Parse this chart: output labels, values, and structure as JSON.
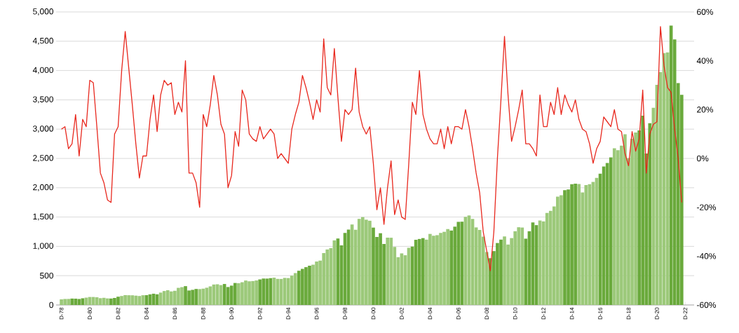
{
  "chart_data": {
    "type": "bar",
    "categories": [
      "D-78",
      null,
      null,
      null,
      null,
      null,
      null,
      null,
      "D-80",
      null,
      null,
      null,
      null,
      null,
      null,
      null,
      "D-82",
      null,
      null,
      null,
      null,
      null,
      null,
      null,
      "D-84",
      null,
      null,
      null,
      null,
      null,
      null,
      null,
      "D-86",
      null,
      null,
      null,
      null,
      null,
      null,
      null,
      "D-88",
      null,
      null,
      null,
      null,
      null,
      null,
      null,
      "D-90",
      null,
      null,
      null,
      null,
      null,
      null,
      null,
      "D-92",
      null,
      null,
      null,
      null,
      null,
      null,
      null,
      "D-94",
      null,
      null,
      null,
      null,
      null,
      null,
      null,
      "D-96",
      null,
      null,
      null,
      null,
      null,
      null,
      null,
      "D-98",
      null,
      null,
      null,
      null,
      null,
      null,
      null,
      "D-00",
      null,
      null,
      null,
      null,
      null,
      null,
      null,
      "D-02",
      null,
      null,
      null,
      null,
      null,
      null,
      null,
      "D-04",
      null,
      null,
      null,
      null,
      null,
      null,
      null,
      "D-06",
      null,
      null,
      null,
      null,
      null,
      null,
      null,
      "D-08",
      null,
      null,
      null,
      null,
      null,
      null,
      null,
      "D-10",
      null,
      null,
      null,
      null,
      null,
      null,
      null,
      "D-12",
      null,
      null,
      null,
      null,
      null,
      null,
      null,
      "D-14",
      null,
      null,
      null,
      null,
      null,
      null,
      null,
      "D-16",
      null,
      null,
      null,
      null,
      null,
      null,
      null,
      "D-18",
      null,
      null,
      null,
      null,
      null,
      null,
      null,
      "D-20",
      null,
      null,
      null,
      null,
      null,
      null,
      null,
      "D-22"
    ],
    "series": [
      {
        "values": [
          96,
          102,
          103,
          109,
          108,
          102,
          114,
          125,
          136,
          136,
          131,
          116,
          122,
          112,
          110,
          120,
          141,
          153,
          168,
          166,
          165,
          159,
          153,
          166,
          167,
          181,
          192,
          182,
          211,
          238,
          251,
          231,
          242,
          292,
          304,
          321,
          247,
          258,
          273,
          271,
          278,
          294,
          317,
          349,
          353,
          339,
          358,
          306,
          330,
          375,
          371,
          388,
          417,
          404,
          408,
          418,
          436,
          451,
          450,
          458,
          466,
          445,
          444,
          462,
          459,
          500,
          544,
          584,
          616,
          645,
          670,
          687,
          741,
          757,
          885,
          947,
          970,
          1102,
          1134,
          1017,
          1229,
          1286,
          1373,
          1283,
          1469,
          1499,
          1455,
          1437,
          1320,
          1160,
          1224,
          1041,
          1148,
          1147,
          990,
          815,
          880,
          848,
          975,
          996,
          1112,
          1126,
          1141,
          1115,
          1212,
          1181,
          1191,
          1229,
          1248,
          1295,
          1270,
          1336,
          1418,
          1421,
          1503,
          1527,
          1468,
          1323,
          1280,
          1166,
          903,
          798,
          919,
          1057,
          1115,
          1169,
          1031,
          1141,
          1258,
          1326,
          1321,
          1131,
          1258,
          1408,
          1362,
          1441,
          1426,
          1569,
          1606,
          1682,
          1848,
          1872,
          1960,
          1972,
          2059,
          2068,
          2063,
          1920,
          2044,
          2060,
          2099,
          2168,
          2239,
          2363,
          2423,
          2519,
          2674,
          2641,
          2718,
          2914,
          2507,
          2834,
          2942,
          2977,
          3231,
          2585,
          3100,
          3363,
          3756,
          3973,
          4298,
          4308,
          4766,
          4530,
          3785,
          3586,
          null
        ],
        "colors": [
          "#9cc97a",
          "#9cc97a",
          "#9cc97a",
          "#6aaa3c",
          "#6aaa3c",
          "#6aaa3c",
          "#6aaa3c",
          "#9cc97a",
          "#9cc97a",
          "#9cc97a",
          "#9cc97a",
          "#9cc97a",
          "#9cc97a",
          "#9cc97a",
          "#6aaa3c",
          "#6aaa3c",
          "#6aaa3c",
          "#9cc97a",
          "#9cc97a",
          "#9cc97a",
          "#9cc97a",
          "#9cc97a",
          "#9cc97a",
          "#9cc97a",
          "#6aaa3c",
          "#6aaa3c",
          "#6aaa3c",
          "#6aaa3c",
          "#9cc97a",
          "#9cc97a",
          "#9cc97a",
          "#9cc97a",
          "#9cc97a",
          "#9cc97a",
          "#9cc97a",
          "#6aaa3c",
          "#6aaa3c",
          "#6aaa3c",
          "#6aaa3c",
          "#9cc97a",
          "#9cc97a",
          "#9cc97a",
          "#9cc97a",
          "#9cc97a",
          "#9cc97a",
          "#9cc97a",
          "#6aaa3c",
          "#6aaa3c",
          "#6aaa3c",
          "#6aaa3c",
          "#9cc97a",
          "#9cc97a",
          "#9cc97a",
          "#9cc97a",
          "#9cc97a",
          "#9cc97a",
          "#6aaa3c",
          "#6aaa3c",
          "#6aaa3c",
          "#6aaa3c",
          "#9cc97a",
          "#9cc97a",
          "#9cc97a",
          "#9cc97a",
          "#9cc97a",
          "#9cc97a",
          "#9cc97a",
          "#6aaa3c",
          "#6aaa3c",
          "#6aaa3c",
          "#6aaa3c",
          "#9cc97a",
          "#9cc97a",
          "#9cc97a",
          "#9cc97a",
          "#9cc97a",
          "#9cc97a",
          "#9cc97a",
          "#6aaa3c",
          "#6aaa3c",
          "#6aaa3c",
          "#6aaa3c",
          "#9cc97a",
          "#9cc97a",
          "#9cc97a",
          "#9cc97a",
          "#9cc97a",
          "#9cc97a",
          "#6aaa3c",
          "#6aaa3c",
          "#6aaa3c",
          "#6aaa3c",
          "#9cc97a",
          "#9cc97a",
          "#9cc97a",
          "#9cc97a",
          "#9cc97a",
          "#9cc97a",
          "#9cc97a",
          "#6aaa3c",
          "#6aaa3c",
          "#6aaa3c",
          "#6aaa3c",
          "#9cc97a",
          "#9cc97a",
          "#9cc97a",
          "#9cc97a",
          "#9cc97a",
          "#9cc97a",
          "#9cc97a",
          "#6aaa3c",
          "#6aaa3c",
          "#6aaa3c",
          "#6aaa3c",
          "#9cc97a",
          "#9cc97a",
          "#9cc97a",
          "#9cc97a",
          "#9cc97a",
          "#9cc97a",
          "#9cc97a",
          "#6aaa3c",
          "#6aaa3c",
          "#6aaa3c",
          "#6aaa3c",
          "#9cc97a",
          "#9cc97a",
          "#9cc97a",
          "#9cc97a",
          "#9cc97a",
          "#9cc97a",
          "#6aaa3c",
          "#6aaa3c",
          "#6aaa3c",
          "#6aaa3c",
          "#9cc97a",
          "#9cc97a",
          "#9cc97a",
          "#9cc97a",
          "#9cc97a",
          "#9cc97a",
          "#9cc97a",
          "#6aaa3c",
          "#6aaa3c",
          "#6aaa3c",
          "#6aaa3c",
          "#9cc97a",
          "#9cc97a",
          "#9cc97a",
          "#9cc97a",
          "#9cc97a",
          "#9cc97a",
          "#6aaa3c",
          "#6aaa3c",
          "#6aaa3c",
          "#6aaa3c",
          "#9cc97a",
          "#9cc97a",
          "#9cc97a",
          "#9cc97a",
          "#9cc97a",
          "#9cc97a",
          "#9cc97a",
          "#6aaa3c",
          "#6aaa3c",
          "#6aaa3c",
          "#6aaa3c",
          "#9cc97a",
          "#9cc97a",
          "#9cc97a",
          "#9cc97a",
          "#9cc97a",
          "#6aaa3c",
          "#6aaa3c",
          "#6aaa3c",
          "#6aaa3c",
          "#9cc97a"
        ]
      },
      {
        "type": "line",
        "axis": "y2",
        "color": "#e8281e",
        "values": [
          12,
          13,
          4,
          6,
          18,
          1,
          16,
          13,
          32,
          31,
          13,
          -6,
          -10,
          -17,
          -18,
          10,
          13,
          36,
          52,
          37,
          22,
          6,
          -8,
          1,
          1,
          16,
          26,
          11,
          26,
          32,
          30,
          31,
          18,
          23,
          19,
          40,
          -6,
          -6,
          -10,
          -20,
          18,
          13,
          22,
          34,
          26,
          14,
          10,
          -12,
          -7,
          11,
          5,
          28,
          24,
          10,
          8,
          7,
          13,
          8,
          10,
          12,
          10,
          0,
          2,
          0,
          -2,
          12,
          18,
          23,
          34,
          29,
          23,
          16,
          24,
          19,
          49,
          29,
          26,
          45,
          25,
          7,
          20,
          18,
          20,
          37,
          19,
          13,
          10,
          13,
          -2,
          -21,
          -12,
          -27,
          -12,
          -1,
          -23,
          -17,
          -24,
          -25,
          -2,
          23,
          18,
          36,
          18,
          12,
          8,
          6,
          6,
          12,
          4,
          13,
          6,
          13,
          13,
          12,
          20,
          13,
          4,
          -6,
          -14,
          -30,
          -38,
          -46,
          -30,
          0,
          24,
          50,
          26,
          7,
          13,
          20,
          28,
          6,
          6,
          4,
          1,
          26,
          13,
          13,
          23,
          18,
          29,
          18,
          26,
          22,
          19,
          24,
          16,
          12,
          11,
          6,
          -2,
          4,
          7,
          17,
          15,
          13,
          20,
          12,
          11,
          2,
          -3,
          11,
          3,
          8,
          28,
          -6,
          10,
          14,
          15,
          54,
          38,
          29,
          27,
          12,
          0,
          -18,
          null
        ]
      }
    ],
    "ylim": [
      0,
      5000
    ],
    "yticks": [
      0,
      500,
      {
        "value": 1000,
        "label": "1,000"
      },
      {
        "value": 1500,
        "label": "1,500"
      },
      {
        "value": 2000,
        "label": "2,000"
      },
      {
        "value": 2500,
        "label": "2,500"
      },
      {
        "value": 3000,
        "label": "3,000"
      },
      {
        "value": 3500,
        "label": "3,500"
      },
      {
        "value": 4000,
        "label": "4,000"
      },
      {
        "value": 4500,
        "label": "4,500"
      },
      {
        "value": 5000,
        "label": "5,000"
      }
    ],
    "y2lim": [
      -60,
      60
    ],
    "y2ticks": [
      {
        "value": -60,
        "label": "-60%"
      },
      {
        "value": -40,
        "label": "-40%"
      },
      {
        "value": -20,
        "label": "-20%"
      },
      {
        "value": 0,
        "label": "0%"
      },
      {
        "value": 20,
        "label": "20%"
      },
      {
        "value": 40,
        "label": "40%"
      },
      {
        "value": 60,
        "label": "60%"
      }
    ],
    "grid": "y"
  }
}
